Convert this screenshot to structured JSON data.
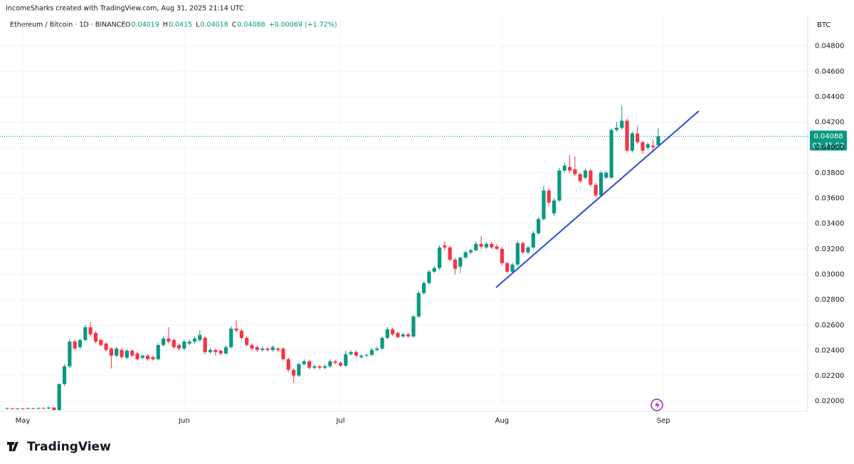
{
  "header": {
    "credit": "IncomeSharks created with TradingView.com, Aug 31, 2025 21:14 UTC",
    "symbol": "Ethereum / Bitcoin · 1D · BINANCE",
    "ohlc_labels": [
      "O",
      "H",
      "L",
      "C"
    ],
    "change": "+0.00069 (+1.72%)"
  },
  "chart_data": {
    "type": "candlestick",
    "unit": "BTC",
    "up_color": "#089981",
    "down_color": "#f23645",
    "grid": true,
    "ylim": [
      0.0192,
      0.0491
    ],
    "yticks": [
      {
        "value": 0.02,
        "label": "0.02000"
      },
      {
        "value": 0.022,
        "label": "0.02200"
      },
      {
        "value": 0.024,
        "label": "0.02400"
      },
      {
        "value": 0.026,
        "label": "0.02600"
      },
      {
        "value": 0.028,
        "label": "0.02800"
      },
      {
        "value": 0.03,
        "label": "0.03000"
      },
      {
        "value": 0.032,
        "label": "0.03200"
      },
      {
        "value": 0.034,
        "label": "0.03400"
      },
      {
        "value": 0.036,
        "label": "0.03600"
      },
      {
        "value": 0.038,
        "label": "0.03800"
      },
      {
        "value": 0.04,
        "label": "0.04000"
      },
      {
        "value": 0.042,
        "label": "0.04200"
      },
      {
        "value": 0.044,
        "label": "0.04400"
      },
      {
        "value": 0.046,
        "label": "0.04600"
      },
      {
        "value": 0.048,
        "label": "0.04800"
      }
    ],
    "xticks": [
      {
        "value": 3,
        "label": "May"
      },
      {
        "value": 34,
        "label": "Jun"
      },
      {
        "value": 64,
        "label": "Jul"
      },
      {
        "value": 95,
        "label": "Aug"
      },
      {
        "value": 126,
        "label": "Sep"
      }
    ],
    "countdown": "02:45:52",
    "ohlc": [
      [
        0.0194,
        0.0195,
        0.01935,
        0.01945
      ],
      [
        0.01943,
        0.01948,
        0.01935,
        0.01938
      ],
      [
        0.01938,
        0.01947,
        0.01934,
        0.01942
      ],
      [
        0.01942,
        0.01946,
        0.01935,
        0.01939
      ],
      [
        0.01939,
        0.0195,
        0.01936,
        0.01944
      ],
      [
        0.01944,
        0.01948,
        0.01936,
        0.0194
      ],
      [
        0.0194,
        0.01951,
        0.01937,
        0.01946
      ],
      [
        0.01946,
        0.0195,
        0.01938,
        0.01942
      ],
      [
        0.01942,
        0.01955,
        0.01938,
        0.0195
      ],
      [
        0.0195,
        0.01953,
        0.01928,
        0.0193
      ],
      [
        0.0193,
        0.0214,
        0.01925,
        0.02135
      ],
      [
        0.02135,
        0.0229,
        0.0212,
        0.02275
      ],
      [
        0.02275,
        0.0249,
        0.0226,
        0.0247
      ],
      [
        0.0247,
        0.02485,
        0.024,
        0.02415
      ],
      [
        0.02426,
        0.02495,
        0.0241,
        0.02482
      ],
      [
        0.02482,
        0.026,
        0.0247,
        0.02583
      ],
      [
        0.02583,
        0.02623,
        0.0251,
        0.02527
      ],
      [
        0.02538,
        0.0255,
        0.02455,
        0.0247
      ],
      [
        0.02482,
        0.02495,
        0.0243,
        0.02443
      ],
      [
        0.02454,
        0.02465,
        0.0239,
        0.02404
      ],
      [
        0.02415,
        0.02425,
        0.02258,
        0.02359
      ],
      [
        0.02359,
        0.0243,
        0.02345,
        0.02415
      ],
      [
        0.02404,
        0.0242,
        0.02335,
        0.02348
      ],
      [
        0.02342,
        0.0241,
        0.0233,
        0.02398
      ],
      [
        0.02398,
        0.0241,
        0.02345,
        0.02359
      ],
      [
        0.02376,
        0.0239,
        0.0232,
        0.02331
      ],
      [
        0.02342,
        0.0237,
        0.0233,
        0.02359
      ],
      [
        0.02359,
        0.0237,
        0.0232,
        0.02331
      ],
      [
        0.02348,
        0.0236,
        0.0232,
        0.02331
      ],
      [
        0.02331,
        0.0246,
        0.0232,
        0.02443
      ],
      [
        0.02443,
        0.0251,
        0.0243,
        0.02494
      ],
      [
        0.02494,
        0.02583,
        0.02455,
        0.0247
      ],
      [
        0.02482,
        0.02495,
        0.0241,
        0.02426
      ],
      [
        0.02443,
        0.02455,
        0.024,
        0.02415
      ],
      [
        0.02415,
        0.02485,
        0.024,
        0.0247
      ],
      [
        0.02454,
        0.02485,
        0.0244,
        0.0247
      ],
      [
        0.0247,
        0.0251,
        0.02455,
        0.02494
      ],
      [
        0.02482,
        0.0256,
        0.0247,
        0.02522
      ],
      [
        0.025,
        0.0251,
        0.0237,
        0.02387
      ],
      [
        0.02387,
        0.0242,
        0.02375,
        0.02404
      ],
      [
        0.02404,
        0.02415,
        0.0236,
        0.02387
      ],
      [
        0.02398,
        0.0241,
        0.0236,
        0.02376
      ],
      [
        0.02376,
        0.0244,
        0.02365,
        0.02426
      ],
      [
        0.02426,
        0.0259,
        0.02415,
        0.02572
      ],
      [
        0.02572,
        0.0264,
        0.02545,
        0.02556
      ],
      [
        0.02556,
        0.0257,
        0.02485,
        0.02499
      ],
      [
        0.02499,
        0.0251,
        0.0243,
        0.02443
      ],
      [
        0.02443,
        0.02455,
        0.024,
        0.02415
      ],
      [
        0.02426,
        0.0244,
        0.0239,
        0.02404
      ],
      [
        0.02404,
        0.0243,
        0.0239,
        0.02415
      ],
      [
        0.02415,
        0.02425,
        0.0239,
        0.02404
      ],
      [
        0.02404,
        0.0244,
        0.0239,
        0.02426
      ],
      [
        0.02415,
        0.02425,
        0.0239,
        0.02404
      ],
      [
        0.02415,
        0.02425,
        0.0232,
        0.02331
      ],
      [
        0.02331,
        0.02345,
        0.0223,
        0.02247
      ],
      [
        0.02247,
        0.0226,
        0.02146,
        0.02202
      ],
      [
        0.02202,
        0.02305,
        0.0219,
        0.02292
      ],
      [
        0.02292,
        0.0233,
        0.0228,
        0.02314
      ],
      [
        0.02314,
        0.02325,
        0.0225,
        0.02264
      ],
      [
        0.02264,
        0.0229,
        0.0225,
        0.02275
      ],
      [
        0.02275,
        0.02285,
        0.0225,
        0.02264
      ],
      [
        0.02264,
        0.0229,
        0.0225,
        0.02275
      ],
      [
        0.02275,
        0.0233,
        0.02265,
        0.02314
      ],
      [
        0.02314,
        0.02325,
        0.0229,
        0.02303
      ],
      [
        0.02303,
        0.02315,
        0.0227,
        0.0228
      ],
      [
        0.0228,
        0.024,
        0.0227,
        0.0237
      ],
      [
        0.0237,
        0.024,
        0.0236,
        0.02387
      ],
      [
        0.02387,
        0.024,
        0.02345,
        0.02359
      ],
      [
        0.02348,
        0.0237,
        0.02335,
        0.02359
      ],
      [
        0.02359,
        0.02375,
        0.0235,
        0.02365
      ],
      [
        0.02365,
        0.0242,
        0.02355,
        0.02404
      ],
      [
        0.02404,
        0.0243,
        0.02395,
        0.02415
      ],
      [
        0.02415,
        0.0251,
        0.02405,
        0.02499
      ],
      [
        0.02499,
        0.02585,
        0.0249,
        0.02567
      ],
      [
        0.02567,
        0.0258,
        0.02515,
        0.02527
      ],
      [
        0.02538,
        0.0255,
        0.02495,
        0.02505
      ],
      [
        0.0251,
        0.0254,
        0.025,
        0.02527
      ],
      [
        0.02527,
        0.0254,
        0.025,
        0.0251
      ],
      [
        0.0251,
        0.0268,
        0.025,
        0.02668
      ],
      [
        0.02668,
        0.0287,
        0.02655,
        0.02853
      ],
      [
        0.02853,
        0.02945,
        0.0284,
        0.02931
      ],
      [
        0.02931,
        0.03035,
        0.0292,
        0.03021
      ],
      [
        0.03021,
        0.03065,
        0.0301,
        0.03049
      ],
      [
        0.03049,
        0.0323,
        0.03035,
        0.03212
      ],
      [
        0.03229,
        0.0326,
        0.0319,
        0.03212
      ],
      [
        0.03212,
        0.03225,
        0.031,
        0.03116
      ],
      [
        0.03116,
        0.0313,
        0.03,
        0.03044
      ],
      [
        0.0306,
        0.0314,
        0.0301,
        0.03133
      ],
      [
        0.03133,
        0.0319,
        0.0312,
        0.03173
      ],
      [
        0.03173,
        0.032,
        0.0316,
        0.0319
      ],
      [
        0.0319,
        0.0326,
        0.0318,
        0.0324
      ],
      [
        0.0324,
        0.033,
        0.032,
        0.03218
      ],
      [
        0.03212,
        0.0325,
        0.032,
        0.0324
      ],
      [
        0.0324,
        0.03255,
        0.032,
        0.03212
      ],
      [
        0.0322,
        0.0324,
        0.0319,
        0.03201
      ],
      [
        0.03201,
        0.03215,
        0.0307,
        0.03088
      ],
      [
        0.03088,
        0.031,
        0.0301,
        0.03021
      ],
      [
        0.03021,
        0.0309,
        0.0301,
        0.03077
      ],
      [
        0.03077,
        0.0326,
        0.03065,
        0.03246
      ],
      [
        0.03246,
        0.0326,
        0.0316,
        0.03173
      ],
      [
        0.03173,
        0.03225,
        0.0316,
        0.03212
      ],
      [
        0.03212,
        0.0334,
        0.032,
        0.03324
      ],
      [
        0.03324,
        0.0345,
        0.0331,
        0.03436
      ],
      [
        0.03436,
        0.037,
        0.0342,
        0.03661
      ],
      [
        0.03661,
        0.0368,
        0.0354,
        0.03565
      ],
      [
        0.03481,
        0.036,
        0.0346,
        0.03582
      ],
      [
        0.03582,
        0.0384,
        0.0357,
        0.03818
      ],
      [
        0.03818,
        0.0388,
        0.038,
        0.03857
      ],
      [
        0.03846,
        0.0394,
        0.038,
        0.03818
      ],
      [
        0.03828,
        0.0393,
        0.03775,
        0.0379
      ],
      [
        0.0379,
        0.038,
        0.0372,
        0.03734
      ],
      [
        0.03762,
        0.03835,
        0.0375,
        0.03818
      ],
      [
        0.03818,
        0.0383,
        0.0369,
        0.03706
      ],
      [
        0.03706,
        0.0372,
        0.03605,
        0.03622
      ],
      [
        0.03622,
        0.03815,
        0.0361,
        0.03801
      ],
      [
        0.03762,
        0.03815,
        0.0375,
        0.03801
      ],
      [
        0.03762,
        0.0415,
        0.0375,
        0.04138
      ],
      [
        0.04138,
        0.042,
        0.04125,
        0.04155
      ],
      [
        0.04155,
        0.0433,
        0.0414,
        0.04211
      ],
      [
        0.04211,
        0.04225,
        0.0396,
        0.03975
      ],
      [
        0.03975,
        0.04125,
        0.0396,
        0.0411
      ],
      [
        0.0411,
        0.0417,
        0.0403,
        0.04042
      ],
      [
        0.04042,
        0.04055,
        0.0395,
        0.03975
      ],
      [
        0.03998,
        0.0404,
        0.0398,
        0.04026
      ],
      [
        0.04014,
        0.0406,
        0.0396,
        0.04003
      ],
      [
        0.04019,
        0.0415,
        0.04018,
        0.04088
      ]
    ]
  },
  "footer": {
    "brand": "TradingView"
  }
}
